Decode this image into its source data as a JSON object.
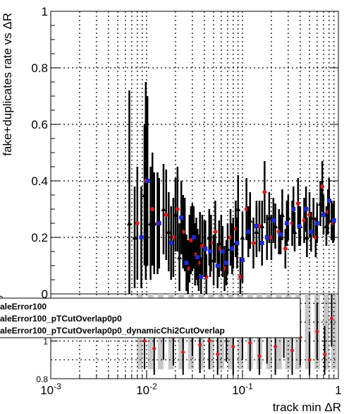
{
  "chart_data": [
    {
      "type": "scatter",
      "panel": "upper",
      "ylabel": "fake+duplicates rate vs ΔR",
      "xscale": "log",
      "xlim": [
        0.001,
        1
      ],
      "ylim": [
        0,
        1
      ],
      "y_ticks": [
        "0",
        "0.2",
        "0.4",
        "0.6",
        "0.8",
        "1"
      ],
      "grid": true,
      "markers": {
        "series1": "#000000",
        "series2": "#d41a1a",
        "series3": "#1a2ad4"
      },
      "series": [
        {
          "points": [
            [
              0.0066,
              0.25
            ],
            [
              0.0075,
              0.2
            ],
            [
              0.0095,
              0.35
            ],
            [
              0.011,
              0.25
            ],
            [
              0.012,
              0.25
            ],
            [
              0.015,
              0.3
            ],
            [
              0.017,
              0.22
            ],
            [
              0.02,
              0.28
            ],
            [
              0.022,
              0.13
            ],
            [
              0.025,
              0.21
            ],
            [
              0.028,
              0.16
            ],
            [
              0.03,
              0.2
            ],
            [
              0.033,
              0.16
            ],
            [
              0.036,
              0.18
            ],
            [
              0.04,
              0.16
            ],
            [
              0.045,
              0.2
            ],
            [
              0.05,
              0.12
            ],
            [
              0.06,
              0.18
            ],
            [
              0.07,
              0.16
            ],
            [
              0.08,
              0.18
            ],
            [
              0.09,
              0.3
            ],
            [
              0.1,
              0.2
            ],
            [
              0.12,
              0.26
            ],
            [
              0.14,
              0.22
            ],
            [
              0.16,
              0.24
            ],
            [
              0.19,
              0.27
            ],
            [
              0.22,
              0.24
            ],
            [
              0.26,
              0.28
            ],
            [
              0.3,
              0.27
            ],
            [
              0.35,
              0.22
            ],
            [
              0.4,
              0.24
            ],
            [
              0.47,
              0.2
            ],
            [
              0.55,
              0.27
            ],
            [
              0.65,
              0.32
            ],
            [
              0.75,
              0.24
            ],
            [
              0.85,
              0.26
            ]
          ],
          "errors": [
            0.47,
            0.18,
            0.25,
            0.2,
            0.18,
            0.16,
            0.14,
            0.13,
            0.12,
            0.13,
            0.12,
            0.12,
            0.11,
            0.11,
            0.1,
            0.1,
            0.09,
            0.1,
            0.09,
            0.09,
            0.12,
            0.09,
            0.1,
            0.09,
            0.09,
            0.09,
            0.08,
            0.09,
            0.08,
            0.07,
            0.07,
            0.07,
            0.07,
            0.08,
            0.07,
            0.07
          ]
        },
        {
          "points": [
            [
              0.008,
              0.25
            ],
            [
              0.0098,
              0.4
            ],
            [
              0.0115,
              0.3
            ],
            [
              0.013,
              0.25
            ],
            [
              0.016,
              0.28
            ],
            [
              0.019,
              0.2
            ],
            [
              0.021,
              0.3
            ],
            [
              0.024,
              0.22
            ],
            [
              0.027,
              0.09
            ],
            [
              0.029,
              0.19
            ],
            [
              0.032,
              0.14
            ],
            [
              0.035,
              0.11
            ],
            [
              0.038,
              0.17
            ],
            [
              0.042,
              0.06
            ],
            [
              0.047,
              0.18
            ],
            [
              0.052,
              0.22
            ],
            [
              0.057,
              0.16
            ],
            [
              0.065,
              0.09
            ],
            [
              0.075,
              0.2
            ],
            [
              0.085,
              0.23
            ],
            [
              0.095,
              0.06
            ],
            [
              0.11,
              0.3
            ],
            [
              0.13,
              0.18
            ],
            [
              0.15,
              0.24
            ],
            [
              0.17,
              0.36
            ],
            [
              0.2,
              0.2
            ],
            [
              0.24,
              0.22
            ],
            [
              0.28,
              0.16
            ],
            [
              0.33,
              0.25
            ],
            [
              0.38,
              0.32
            ],
            [
              0.44,
              0.26
            ],
            [
              0.5,
              0.28
            ],
            [
              0.58,
              0.2
            ],
            [
              0.68,
              0.38
            ],
            [
              0.78,
              0.29
            ],
            [
              0.88,
              0.25
            ]
          ],
          "errors": [
            0.2,
            0.35,
            0.2,
            0.18,
            0.16,
            0.14,
            0.15,
            0.13,
            0.1,
            0.12,
            0.11,
            0.1,
            0.11,
            0.08,
            0.1,
            0.11,
            0.1,
            0.08,
            0.1,
            0.1,
            0.07,
            0.11,
            0.09,
            0.09,
            0.11,
            0.08,
            0.08,
            0.07,
            0.08,
            0.09,
            0.08,
            0.08,
            0.07,
            0.09,
            0.08,
            0.07
          ]
        },
        {
          "points": [
            [
              0.0088,
              0.2
            ],
            [
              0.0102,
              0.4
            ],
            [
              0.0135,
              0.25
            ],
            [
              0.018,
              0.18
            ],
            [
              0.023,
              0.27
            ],
            [
              0.026,
              0.11
            ],
            [
              0.031,
              0.2
            ],
            [
              0.034,
              0.13
            ],
            [
              0.037,
              0.06
            ],
            [
              0.041,
              0.16
            ],
            [
              0.046,
              0.15
            ],
            [
              0.055,
              0.1
            ],
            [
              0.062,
              0.15
            ],
            [
              0.068,
              0.11
            ],
            [
              0.078,
              0.16
            ],
            [
              0.088,
              0.18
            ],
            [
              0.1,
              0.12
            ],
            [
              0.115,
              0.22
            ],
            [
              0.14,
              0.24
            ],
            [
              0.16,
              0.18
            ],
            [
              0.18,
              0.2
            ],
            [
              0.21,
              0.26
            ],
            [
              0.25,
              0.21
            ],
            [
              0.29,
              0.25
            ],
            [
              0.34,
              0.3
            ],
            [
              0.39,
              0.24
            ],
            [
              0.46,
              0.3
            ],
            [
              0.52,
              0.22
            ],
            [
              0.6,
              0.25
            ],
            [
              0.7,
              0.28
            ],
            [
              0.8,
              0.33
            ],
            [
              0.9,
              0.26
            ]
          ],
          "errors": [
            0.18,
            0.3,
            0.16,
            0.13,
            0.13,
            0.1,
            0.11,
            0.1,
            0.07,
            0.1,
            0.09,
            0.08,
            0.09,
            0.08,
            0.09,
            0.09,
            0.08,
            0.09,
            0.09,
            0.08,
            0.08,
            0.08,
            0.07,
            0.08,
            0.08,
            0.07,
            0.08,
            0.07,
            0.07,
            0.07,
            0.08,
            0.07
          ]
        }
      ]
    },
    {
      "type": "scatter",
      "panel": "lower",
      "xlabel": "track min ΔR",
      "xscale": "log",
      "xlim": [
        0.001,
        1
      ],
      "x_ticks": [
        "10^{-3}",
        "10^{-2}",
        "10^{-1}",
        "1"
      ],
      "y_ticks": [
        "0.8",
        "1"
      ],
      "ylim": [
        0.8,
        1.25
      ],
      "grid": true,
      "partial_tick": "0",
      "bands": [
        [
          0.0085,
          0.85,
          1.25
        ],
        [
          0.011,
          0.85,
          1.25
        ],
        [
          0.014,
          0.85,
          1.25
        ],
        [
          0.018,
          0.85,
          1.25
        ],
        [
          0.023,
          0.85,
          1.25
        ],
        [
          0.029,
          0.85,
          1.25
        ],
        [
          0.037,
          0.85,
          1.25
        ],
        [
          0.047,
          0.85,
          1.25
        ],
        [
          0.06,
          0.85,
          1.25
        ],
        [
          0.075,
          0.85,
          1.25
        ],
        [
          0.095,
          0.85,
          1.25
        ],
        [
          0.12,
          0.85,
          1.25
        ],
        [
          0.15,
          0.85,
          1.25
        ],
        [
          0.19,
          0.85,
          1.25
        ],
        [
          0.24,
          0.85,
          1.25
        ],
        [
          0.3,
          0.85,
          1.25
        ],
        [
          0.38,
          0.85,
          1.25
        ],
        [
          0.48,
          0.85,
          1.25
        ],
        [
          0.6,
          0.85,
          1.25
        ],
        [
          0.75,
          0.85,
          1.25
        ],
        [
          0.9,
          0.85,
          1.25
        ]
      ],
      "ratio_points": [
        [
          0.0095,
          1.0
        ],
        [
          0.012,
          0.96
        ],
        [
          0.015,
          1.05
        ],
        [
          0.019,
          1.02
        ],
        [
          0.024,
          0.94
        ],
        [
          0.03,
          1.07
        ],
        [
          0.036,
          0.98
        ],
        [
          0.045,
          1.0
        ],
        [
          0.055,
          0.93
        ],
        [
          0.068,
          1.04
        ],
        [
          0.08,
          0.97
        ],
        [
          0.1,
          1.05
        ],
        [
          0.12,
          0.99
        ],
        [
          0.15,
          0.92
        ],
        [
          0.18,
          1.03
        ],
        [
          0.22,
          0.97
        ],
        [
          0.27,
          1.06
        ],
        [
          0.33,
          0.95
        ],
        [
          0.4,
          1.02
        ],
        [
          0.5,
          0.9
        ],
        [
          0.6,
          1.05
        ],
        [
          0.72,
          0.93
        ],
        [
          0.85,
          1.12
        ]
      ]
    }
  ],
  "legend": {
    "entries": [
      "aleError100",
      "aleError100_pTCutOverlap0p0",
      "aleError100_pTCutOverlap0p0_dynamicChi2CutOverlap"
    ]
  }
}
